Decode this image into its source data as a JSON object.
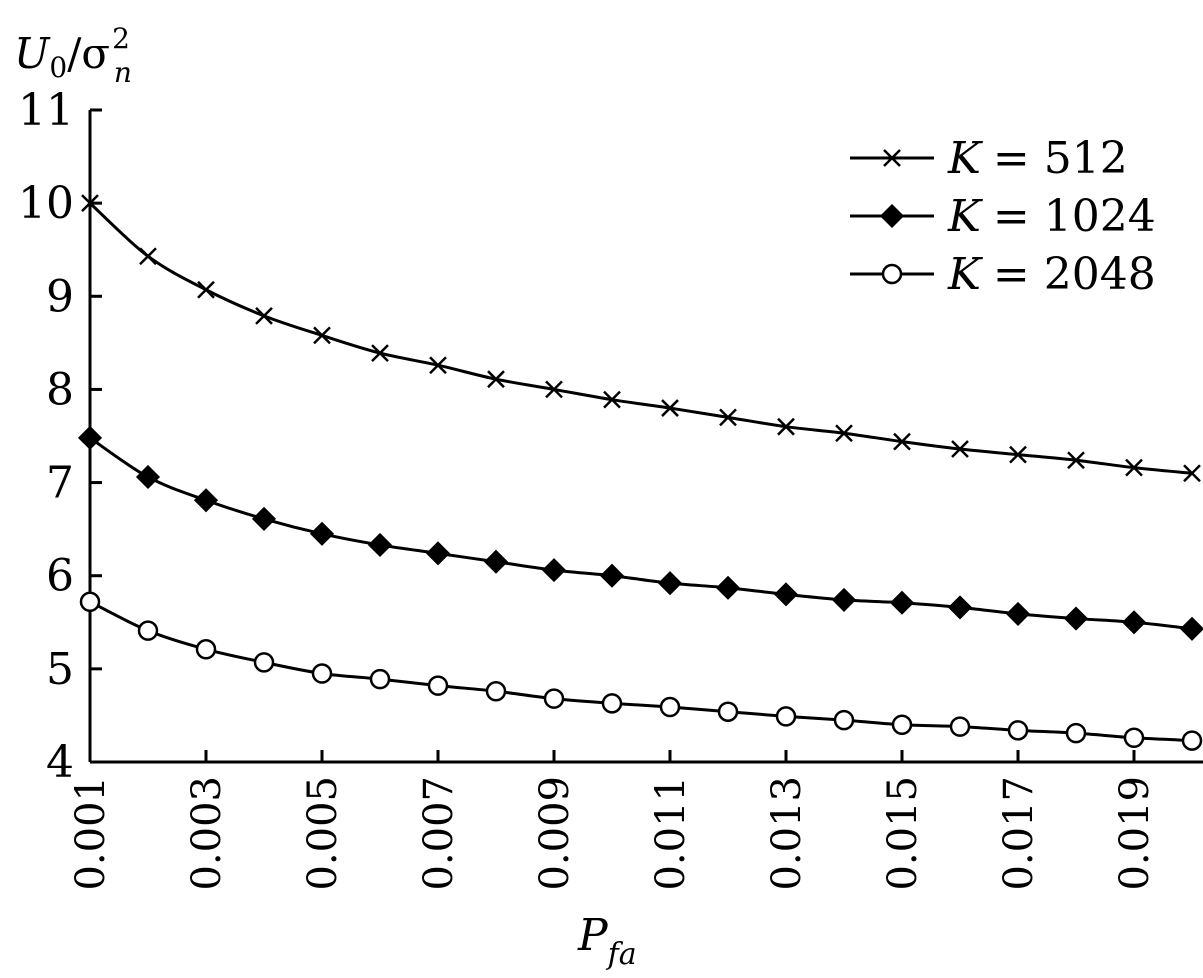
{
  "chart_data": {
    "type": "line",
    "ylabel": {
      "main": "U",
      "sub": "0",
      "slash": "/σ",
      "sup": "2",
      "sub2": "n"
    },
    "xlabel": {
      "main": "P",
      "sub": "fa"
    },
    "xlim": [
      0.001,
      0.02
    ],
    "ylim": [
      4,
      11
    ],
    "x_tick_labels": [
      "0.001",
      "0.003",
      "0.005",
      "0.007",
      "0.009",
      "0.011",
      "0.013",
      "0.015",
      "0.017",
      "0.019"
    ],
    "x_tick_values": [
      0.001,
      0.003,
      0.005,
      0.007,
      0.009,
      0.011,
      0.013,
      0.015,
      0.017,
      0.019
    ],
    "y_tick_labels": [
      "4",
      "5",
      "6",
      "7",
      "8",
      "9",
      "10",
      "11"
    ],
    "y_tick_values": [
      4,
      5,
      6,
      7,
      8,
      9,
      10,
      11
    ],
    "x": [
      0.001,
      0.002,
      0.003,
      0.004,
      0.005,
      0.006,
      0.007,
      0.008,
      0.009,
      0.01,
      0.011,
      0.012,
      0.013,
      0.014,
      0.015,
      0.016,
      0.017,
      0.018,
      0.019,
      0.02
    ],
    "legend_position": "top-right",
    "grid": false,
    "series": [
      {
        "name": "K = 512",
        "k_label": "K",
        "k_value": "= 512",
        "marker": "x",
        "values": [
          10.0,
          9.43,
          9.07,
          8.79,
          8.58,
          8.39,
          8.26,
          8.11,
          8.0,
          7.89,
          7.8,
          7.7,
          7.6,
          7.53,
          7.44,
          7.36,
          7.3,
          7.24,
          7.16,
          7.1
        ]
      },
      {
        "name": "K = 1024",
        "k_label": "K",
        "k_value": "= 1024",
        "marker": "diamond",
        "values": [
          7.48,
          7.06,
          6.81,
          6.61,
          6.45,
          6.33,
          6.24,
          6.15,
          6.06,
          6.0,
          5.92,
          5.87,
          5.8,
          5.74,
          5.71,
          5.66,
          5.59,
          5.54,
          5.5,
          5.43
        ]
      },
      {
        "name": "K = 2048",
        "k_label": "K",
        "k_value": "= 2048",
        "marker": "circle",
        "values": [
          5.72,
          5.41,
          5.21,
          5.07,
          4.95,
          4.89,
          4.82,
          4.76,
          4.68,
          4.63,
          4.59,
          4.54,
          4.49,
          4.45,
          4.4,
          4.38,
          4.34,
          4.31,
          4.26,
          4.23
        ]
      }
    ]
  }
}
